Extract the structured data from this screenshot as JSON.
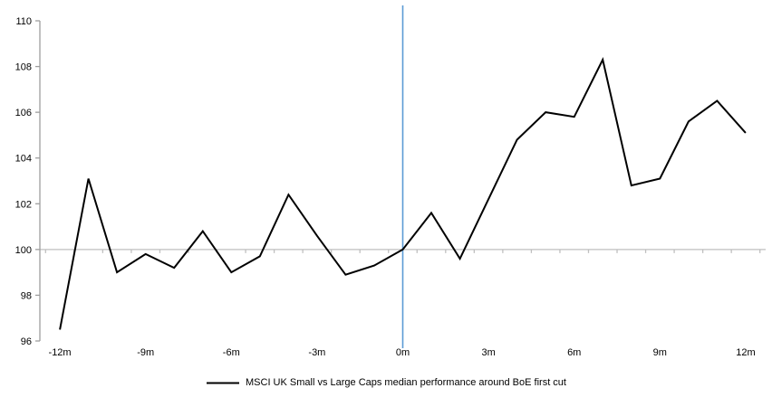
{
  "chart_data": {
    "type": "line",
    "title": "",
    "legend_label": "MSCI UK Small vs Large Caps median performance around BoE first cut",
    "legend_position": "bottom-center",
    "x": [
      -12,
      -11,
      -10,
      -9,
      -8,
      -7,
      -6,
      -5,
      -4,
      -3,
      -2,
      -1,
      0,
      1,
      2,
      3,
      4,
      5,
      6,
      7,
      8,
      9,
      10,
      11,
      12
    ],
    "series": [
      {
        "name": "MSCI UK Small vs Large Caps median performance around BoE first cut",
        "values": [
          96.5,
          103.1,
          99.0,
          99.8,
          99.2,
          100.8,
          99.0,
          99.7,
          102.4,
          100.6,
          98.9,
          99.3,
          100.0,
          101.6,
          99.6,
          102.2,
          104.8,
          106.0,
          105.8,
          108.3,
          102.8,
          103.1,
          105.6,
          106.5,
          105.1
        ]
      }
    ],
    "xlabel": "",
    "ylabel": "",
    "xlim": [
      -12.7,
      12.7
    ],
    "ylim": [
      96,
      110
    ],
    "y_ticks": [
      96,
      98,
      100,
      102,
      104,
      106,
      108,
      110
    ],
    "x_ticks": [
      {
        "label": "-12m",
        "value": -12
      },
      {
        "label": "-9m",
        "value": -9
      },
      {
        "label": "-6m",
        "value": -6
      },
      {
        "label": "-3m",
        "value": -3
      },
      {
        "label": "0m",
        "value": 0
      },
      {
        "label": "3m",
        "value": 3
      },
      {
        "label": "6m",
        "value": 6
      },
      {
        "label": "9m",
        "value": 9
      },
      {
        "label": "12m",
        "value": 12
      }
    ],
    "minor_tick_boundaries_step": 1,
    "baseline_value": 100,
    "event_line_x": 0,
    "grid": false,
    "colors": {
      "series_line": "#000000",
      "event_line": "#5B9BD5",
      "y_axis": "#9e9e9e",
      "baseline_axis": "#bfbfbf",
      "tick_label": "#000000"
    }
  }
}
